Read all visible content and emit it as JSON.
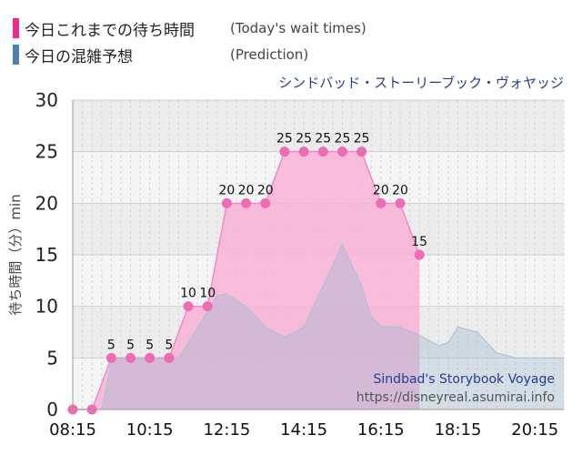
{
  "legend": [
    {
      "label": "今日これまでの待ち時間",
      "note": "(Today's wait times)",
      "color": "#ee2c8f"
    },
    {
      "label": "今日の混雑予想",
      "note": "(Prediction)",
      "color": "#4a80b3"
    }
  ],
  "ride_title": "シンドバッド・ストーリーブック・ヴォヤッジ",
  "watermark": {
    "line1": "Sindbad's Storybook Voyage",
    "line2": "https://disneyreal.asumirai.info"
  },
  "chart_data": {
    "type": "area",
    "ylabel": "待ち時間（分）min",
    "ylim": [
      0,
      30
    ],
    "yticks": [
      0,
      5,
      10,
      15,
      20,
      25,
      30
    ],
    "xlim": [
      "08:15",
      "21:00"
    ],
    "xticks": [
      "08:15",
      "10:15",
      "12:15",
      "14:15",
      "16:15",
      "18:15",
      "20:15"
    ],
    "grid": true,
    "series": [
      {
        "name": "今日これまでの待ち時間",
        "color": "#ee2c8f",
        "points": [
          {
            "x": "08:15",
            "y": 0
          },
          {
            "x": "08:45",
            "y": 0
          },
          {
            "x": "09:15",
            "y": 5
          },
          {
            "x": "09:45",
            "y": 5
          },
          {
            "x": "10:15",
            "y": 5
          },
          {
            "x": "10:45",
            "y": 5
          },
          {
            "x": "11:15",
            "y": 10
          },
          {
            "x": "11:45",
            "y": 10
          },
          {
            "x": "12:15",
            "y": 20
          },
          {
            "x": "12:45",
            "y": 20
          },
          {
            "x": "13:15",
            "y": 20
          },
          {
            "x": "13:45",
            "y": 25
          },
          {
            "x": "14:15",
            "y": 25
          },
          {
            "x": "14:45",
            "y": 25
          },
          {
            "x": "15:15",
            "y": 25
          },
          {
            "x": "15:45",
            "y": 25
          },
          {
            "x": "16:15",
            "y": 20
          },
          {
            "x": "16:45",
            "y": 20
          },
          {
            "x": "17:15",
            "y": 15
          }
        ]
      },
      {
        "name": "今日の混雑予想",
        "color": "#4a80b3",
        "points": [
          {
            "x": "09:00",
            "y": 0
          },
          {
            "x": "09:15",
            "y": 4.5
          },
          {
            "x": "09:30",
            "y": 5
          },
          {
            "x": "10:15",
            "y": 5
          },
          {
            "x": "11:00",
            "y": 5
          },
          {
            "x": "11:30",
            "y": 8
          },
          {
            "x": "12:00",
            "y": 11
          },
          {
            "x": "12:15",
            "y": 11.2
          },
          {
            "x": "12:45",
            "y": 10
          },
          {
            "x": "13:15",
            "y": 8
          },
          {
            "x": "13:45",
            "y": 7
          },
          {
            "x": "14:15",
            "y": 8
          },
          {
            "x": "14:45",
            "y": 12
          },
          {
            "x": "15:15",
            "y": 16
          },
          {
            "x": "15:45",
            "y": 12
          },
          {
            "x": "16:00",
            "y": 9
          },
          {
            "x": "16:15",
            "y": 8.1
          },
          {
            "x": "16:45",
            "y": 8
          },
          {
            "x": "17:15",
            "y": 7.2
          },
          {
            "x": "17:45",
            "y": 6.2
          },
          {
            "x": "18:00",
            "y": 6.5
          },
          {
            "x": "18:15",
            "y": 8
          },
          {
            "x": "18:45",
            "y": 7.5
          },
          {
            "x": "19:15",
            "y": 5.5
          },
          {
            "x": "19:45",
            "y": 5
          },
          {
            "x": "20:15",
            "y": 5
          },
          {
            "x": "21:00",
            "y": 5
          }
        ]
      }
    ]
  }
}
